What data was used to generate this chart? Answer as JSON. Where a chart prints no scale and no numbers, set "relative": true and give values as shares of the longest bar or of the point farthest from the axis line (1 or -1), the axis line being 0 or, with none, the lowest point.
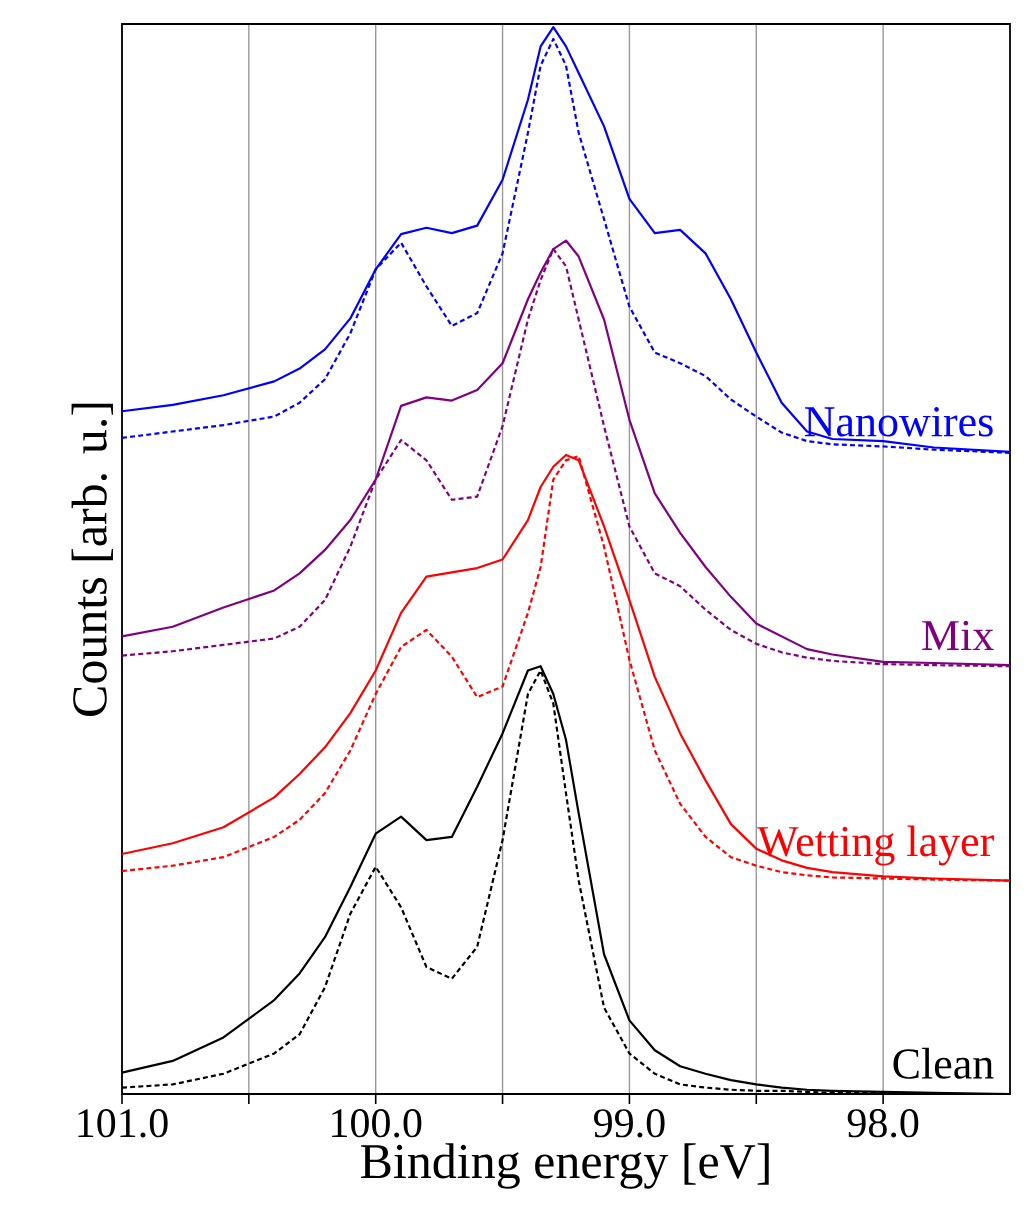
{
  "chart_data": {
    "type": "line",
    "relative": true,
    "xlabel": "Binding energy [eV]",
    "ylabel": "Counts [arb. u.]",
    "x": [
      101.0,
      100.8,
      100.6,
      100.4,
      100.3,
      100.2,
      100.1,
      100.0,
      99.9,
      99.8,
      99.7,
      99.6,
      99.5,
      99.4,
      99.35,
      99.3,
      99.25,
      99.2,
      99.1,
      99.0,
      98.9,
      98.8,
      98.7,
      98.6,
      98.5,
      98.4,
      98.3,
      98.2,
      98.0,
      97.8,
      97.5
    ],
    "xlim": [
      101.0,
      97.5
    ],
    "xticks": [
      {
        "value": 101.0,
        "label": "101.0"
      },
      {
        "value": 100.5,
        "label": null
      },
      {
        "value": 100.0,
        "label": "100.0"
      },
      {
        "value": 99.5,
        "label": null
      },
      {
        "value": 99.0,
        "label": "99.0"
      },
      {
        "value": 98.5,
        "label": null
      },
      {
        "value": 98.0,
        "label": "98.0"
      }
    ],
    "grid": "x",
    "series": [
      {
        "name": "Nanowires",
        "color": "#0000ff",
        "line_style": "solid",
        "values": [
          0.64,
          0.646,
          0.655,
          0.668,
          0.68,
          0.698,
          0.727,
          0.773,
          0.806,
          0.812,
          0.807,
          0.814,
          0.857,
          0.932,
          0.982,
          1.0,
          0.982,
          0.957,
          0.907,
          0.839,
          0.807,
          0.81,
          0.788,
          0.745,
          0.695,
          0.648,
          0.621,
          0.614,
          0.612,
          0.606,
          0.602
        ]
      },
      {
        "color": "#0000ff",
        "line_style": "dashed",
        "values": [
          0.615,
          0.621,
          0.627,
          0.635,
          0.648,
          0.67,
          0.713,
          0.773,
          0.798,
          0.757,
          0.72,
          0.732,
          0.788,
          0.901,
          0.964,
          0.989,
          0.964,
          0.901,
          0.82,
          0.738,
          0.695,
          0.685,
          0.673,
          0.651,
          0.635,
          0.62,
          0.612,
          0.609,
          0.607,
          0.604,
          0.601
        ]
      },
      {
        "name": "Mix",
        "color": "#800080",
        "line_style": "solid",
        "values": [
          0.429,
          0.438,
          0.456,
          0.472,
          0.488,
          0.51,
          0.538,
          0.576,
          0.645,
          0.653,
          0.65,
          0.66,
          0.685,
          0.745,
          0.77,
          0.792,
          0.8,
          0.785,
          0.726,
          0.632,
          0.563,
          0.526,
          0.494,
          0.466,
          0.441,
          0.429,
          0.417,
          0.412,
          0.405,
          0.404,
          0.402
        ]
      },
      {
        "color": "#800080",
        "line_style": "dashed",
        "values": [
          0.411,
          0.415,
          0.421,
          0.427,
          0.438,
          0.463,
          0.513,
          0.576,
          0.613,
          0.594,
          0.557,
          0.56,
          0.626,
          0.726,
          0.763,
          0.792,
          0.776,
          0.726,
          0.626,
          0.532,
          0.488,
          0.476,
          0.454,
          0.435,
          0.422,
          0.414,
          0.409,
          0.406,
          0.403,
          0.402,
          0.401
        ]
      },
      {
        "name": "Wetting layer",
        "color": "#ff0000",
        "line_style": "solid",
        "values": [
          0.225,
          0.235,
          0.25,
          0.278,
          0.3,
          0.325,
          0.357,
          0.397,
          0.451,
          0.485,
          0.489,
          0.493,
          0.501,
          0.538,
          0.569,
          0.588,
          0.599,
          0.594,
          0.532,
          0.463,
          0.391,
          0.338,
          0.294,
          0.253,
          0.23,
          0.219,
          0.212,
          0.208,
          0.204,
          0.202,
          0.2
        ]
      },
      {
        "color": "#ff0000",
        "line_style": "dashed",
        "values": [
          0.209,
          0.214,
          0.222,
          0.241,
          0.257,
          0.282,
          0.322,
          0.375,
          0.419,
          0.435,
          0.41,
          0.372,
          0.382,
          0.451,
          0.494,
          0.576,
          0.594,
          0.598,
          0.513,
          0.407,
          0.322,
          0.272,
          0.241,
          0.222,
          0.214,
          0.208,
          0.205,
          0.203,
          0.202,
          0.201,
          0.2
        ]
      },
      {
        "name": "Clean",
        "color": "#000000",
        "line_style": "solid",
        "values": [
          0.02,
          0.031,
          0.053,
          0.088,
          0.113,
          0.147,
          0.194,
          0.244,
          0.26,
          0.238,
          0.241,
          0.288,
          0.338,
          0.397,
          0.401,
          0.375,
          0.332,
          0.263,
          0.131,
          0.069,
          0.041,
          0.026,
          0.019,
          0.013,
          0.009,
          0.006,
          0.004,
          0.003,
          0.002,
          0.001,
          0.0
        ]
      },
      {
        "color": "#000000",
        "line_style": "dashed",
        "values": [
          0.006,
          0.009,
          0.019,
          0.038,
          0.056,
          0.1,
          0.169,
          0.213,
          0.175,
          0.119,
          0.108,
          0.138,
          0.238,
          0.375,
          0.397,
          0.366,
          0.282,
          0.2,
          0.081,
          0.038,
          0.019,
          0.009,
          0.006,
          0.004,
          0.003,
          0.003,
          0.002,
          0.001,
          0.001,
          0.0,
          0.0
        ]
      }
    ]
  }
}
